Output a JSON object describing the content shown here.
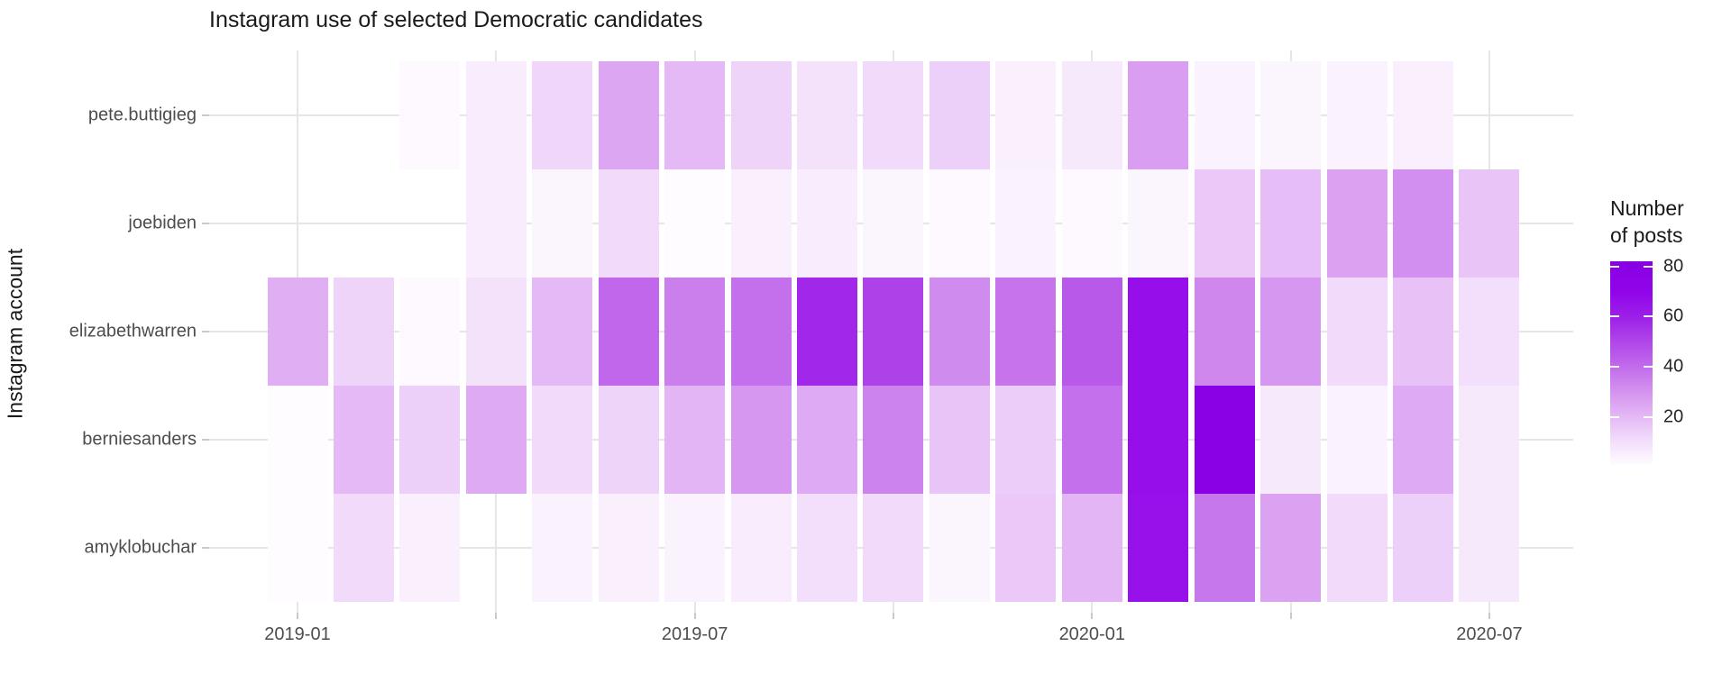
{
  "title": "Instagram use of selected Democratic candidates",
  "y_axis_title": "Instagram account",
  "legend": {
    "title_line1": "Number",
    "title_line2": "of posts",
    "ticks": [
      80,
      60,
      40,
      20
    ],
    "domain": [
      1,
      82
    ]
  },
  "colors": {
    "gridline": "#e6e6e6",
    "tick_mark": "#c9c9c9",
    "axis_text": "#4d4d4d",
    "scale_low": "#ffffff",
    "scale_high": "#8800e4"
  },
  "scale_anchors": [
    [
      0,
      "#ffffff"
    ],
    [
      10,
      "#f3dffb"
    ],
    [
      20,
      "#e5b9f5"
    ],
    [
      30,
      "#d493ef"
    ],
    [
      40,
      "#c26beb"
    ],
    [
      50,
      "#b046e9"
    ],
    [
      60,
      "#9d1fe9"
    ],
    [
      70,
      "#9104ea"
    ],
    [
      82,
      "#8800e4"
    ]
  ],
  "chart_data": {
    "type": "heatmap",
    "title": "Instagram use of selected Democratic candidates",
    "xlabel": "",
    "ylabel": "Instagram account",
    "legend_title": "Number of posts",
    "legend_position": "right",
    "grid": "on",
    "x_categories": [
      "2019-01",
      "2019-02",
      "2019-03",
      "2019-04",
      "2019-05",
      "2019-06",
      "2019-07",
      "2019-08",
      "2019-09",
      "2019-10",
      "2019-11",
      "2019-12",
      "2020-01",
      "2020-02",
      "2020-03",
      "2020-04",
      "2020-05",
      "2020-06",
      "2020-07"
    ],
    "x_label_every_months": 6,
    "x_grid_every_months": 3,
    "x_tick_labels_shown": [
      "2019-01",
      "2019-07",
      "2020-01",
      "2020-07"
    ],
    "y_categories": [
      "pete.buttigieg",
      "joebiden",
      "elizabethwarren",
      "berniesanders",
      "amyklobuchar"
    ],
    "fill_scale": {
      "low": "#ffffff",
      "high": "#8800e4",
      "limits": [
        1,
        82
      ]
    },
    "series": [
      {
        "name": "pete.buttigieg",
        "values": [
          null,
          null,
          2,
          6,
          12,
          25,
          20,
          13,
          9,
          11,
          14,
          5,
          7,
          27,
          4,
          3,
          4,
          5,
          null
        ]
      },
      {
        "name": "joebiden",
        "values": [
          null,
          null,
          null,
          6,
          3,
          11,
          1,
          5,
          6,
          3,
          2,
          4,
          2,
          3,
          16,
          19,
          26,
          31,
          17
        ]
      },
      {
        "name": "elizabethwarren",
        "values": [
          23,
          13,
          2,
          9,
          20,
          41,
          35,
          39,
          58,
          51,
          32,
          38,
          45,
          66,
          33,
          29,
          11,
          18,
          10
        ]
      },
      {
        "name": "berniesanders",
        "values": [
          1,
          20,
          14,
          24,
          11,
          13,
          21,
          29,
          24,
          34,
          17,
          15,
          39,
          66,
          78,
          7,
          4,
          24,
          7
        ]
      },
      {
        "name": "amyklobuchar",
        "values": [
          1,
          11,
          5,
          null,
          4,
          5,
          4,
          6,
          10,
          11,
          3,
          16,
          21,
          65,
          37,
          26,
          11,
          14,
          7
        ]
      }
    ]
  }
}
